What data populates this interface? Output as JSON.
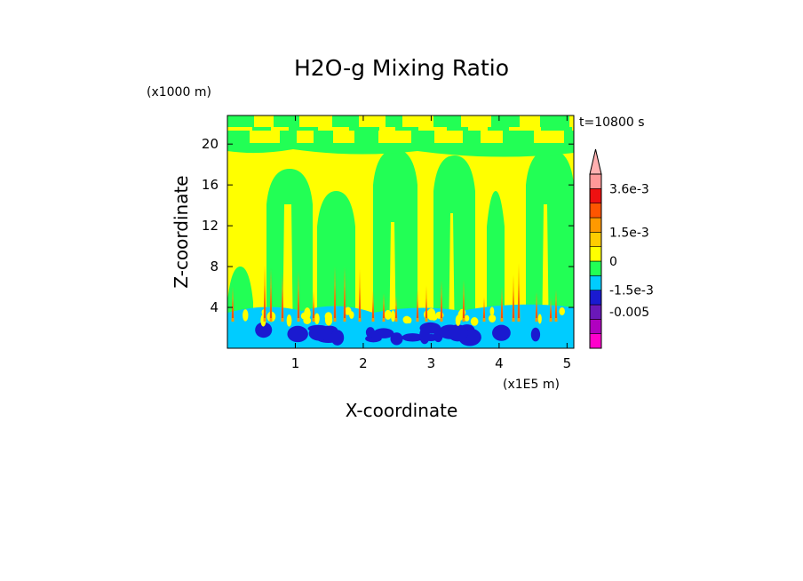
{
  "chart_data": {
    "type": "heatmap",
    "title": "H2O-g Mixing Ratio",
    "time_label": "t=10800 s",
    "xlabel": "X-coordinate",
    "ylabel": "Z-coordinate",
    "x_unit_label": "(x1E5 m)",
    "y_unit_label": "(x1000 m)",
    "xlim": [
      0,
      5.1
    ],
    "ylim": [
      0,
      22.8
    ],
    "x_ticks": [
      1,
      2,
      3,
      4,
      5
    ],
    "y_ticks": [
      4,
      8,
      12,
      16,
      20
    ],
    "colorbar": {
      "labels": [
        "3.6e-3",
        "1.5e-3",
        "0",
        "-1.5e-3",
        "-0.005"
      ],
      "colors": [
        "#ff00cc",
        "#b000c0",
        "#6a18b8",
        "#1a1ad0",
        "#00ccff",
        "#22ff55",
        "#ffff00",
        "#ffcc00",
        "#ff9900",
        "#ff5500",
        "#ee1111",
        "#ff9999"
      ],
      "extend": "max"
    },
    "field_colors": {
      "moist": "#22ff55",
      "neutral": "#ffff00",
      "plume": "#ff9900",
      "plume_core": "#ee1111",
      "dry_low": "#00ccff",
      "dry_core": "#1a1ad0"
    }
  }
}
